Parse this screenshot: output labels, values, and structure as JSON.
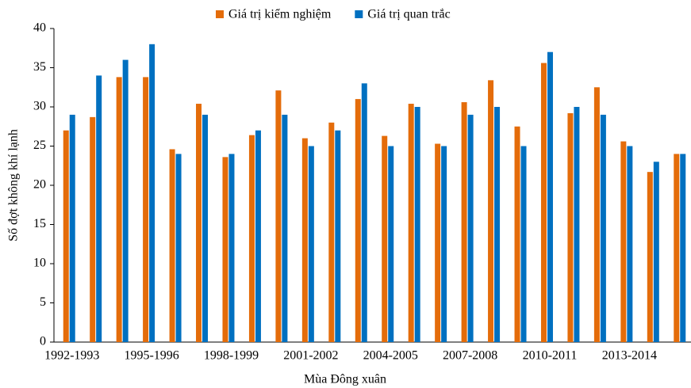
{
  "chart_data": {
    "type": "bar",
    "title_x": "Mùa Đông xuân",
    "y_label": "Số đợt không khí lạnh",
    "categories": [
      "1992-1993",
      null,
      null,
      "1995-1996",
      null,
      null,
      "1998-1999",
      null,
      null,
      "2001-2002",
      null,
      null,
      "2004-2005",
      null,
      null,
      "2007-2008",
      null,
      null,
      "2010-2011",
      null,
      null,
      "2013-2014",
      null,
      null
    ],
    "series": [
      {
        "name": "Giá trị kiểm nghiệm",
        "color": "#e46c0a",
        "values": [
          27,
          28.7,
          33.8,
          33.8,
          24.6,
          30.4,
          23.6,
          26.4,
          32.1,
          26,
          28,
          31,
          26.3,
          30.4,
          25.3,
          30.6,
          33.4,
          27.5,
          35.6,
          29.2,
          32.5,
          25.6,
          21.7,
          24
        ]
      },
      {
        "name": "Giá trị quan trắc",
        "color": "#0070c0",
        "values": [
          29,
          34,
          36,
          38,
          24,
          29,
          24,
          27,
          29,
          25,
          27,
          33,
          25,
          30,
          25,
          29,
          30,
          25,
          37,
          30,
          29,
          25,
          23,
          24
        ]
      }
    ],
    "ylim": [
      0,
      40
    ],
    "yticks": [
      0,
      5,
      10,
      15,
      20,
      25,
      30,
      35,
      40
    ],
    "grid": false,
    "legend": "top"
  }
}
